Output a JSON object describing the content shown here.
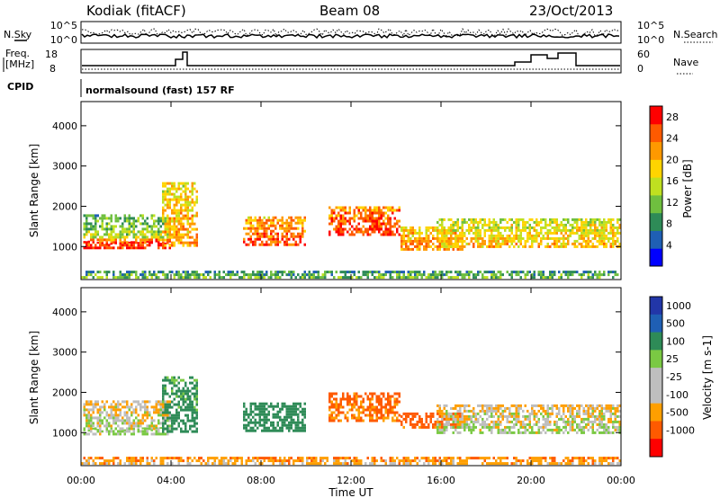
{
  "header": {
    "station": "Kodiak (fitACF)",
    "beam": "Beam 08",
    "date": "23/Oct/2013"
  },
  "top_panels": {
    "nsky_label": "N.Sky",
    "nsearch_label": "N.Search",
    "freq_label_1": "Freq.",
    "freq_label_2": "[MHz]",
    "nave_label": "Nave",
    "cpid_label": "CPID",
    "cpid_value": "normalsound (fast) 157 RF",
    "noise_left_ticks": [
      "10^5",
      "10^0"
    ],
    "noise_right_ticks": [
      "10^5",
      "10^0"
    ],
    "freq_ticks": [
      "18",
      "8"
    ],
    "nave_ticks": [
      "60",
      "0"
    ]
  },
  "colors": {
    "power": [
      "#0000ff",
      "#1f5fb4",
      "#2e8b57",
      "#6fbf3f",
      "#bfe020",
      "#ffd400",
      "#ff9900",
      "#ff5a00",
      "#ff0000"
    ],
    "velocity": [
      "#ff0000",
      "#ff5a00",
      "#ff9f00",
      "#bebebe",
      "#bebebe",
      "#7ac943",
      "#2e8b57",
      "#1f5fb4",
      "#2236a8"
    ]
  },
  "chart_data": [
    {
      "type": "heatmap",
      "title": "",
      "xlabel": "Time UT",
      "ylabel": "Slant Range [km]",
      "x_ticks": [
        "00:00",
        "04:00",
        "08:00",
        "12:00",
        "16:00",
        "20:00",
        "00:00"
      ],
      "y_ticks": [
        "1000",
        "2000",
        "3000",
        "4000"
      ],
      "xlim_hours": [
        0,
        24
      ],
      "ylim_km": [
        180,
        4600
      ],
      "colorbar": {
        "label": "Power [dB]",
        "ticks": [
          "4",
          "8",
          "12",
          "16",
          "20",
          "24",
          "28"
        ],
        "range": [
          0,
          30
        ]
      },
      "echo_regions": [
        {
          "t_start": 0.1,
          "t_end": 4.0,
          "range_km": [
            950,
            1200
          ],
          "value": 27
        },
        {
          "t_start": 0.1,
          "t_end": 4.0,
          "range_km": [
            1200,
            1800
          ],
          "value": 12
        },
        {
          "t_start": 3.6,
          "t_end": 5.2,
          "range_km": [
            1000,
            2600
          ],
          "value": 20
        },
        {
          "t_start": 7.2,
          "t_end": 10.0,
          "range_km": [
            1050,
            1750
          ],
          "value": 24
        },
        {
          "t_start": 11.0,
          "t_end": 14.2,
          "range_km": [
            1300,
            2000
          ],
          "value": 26
        },
        {
          "t_start": 14.2,
          "t_end": 17.0,
          "range_km": [
            900,
            1500
          ],
          "value": 22
        },
        {
          "t_start": 15.8,
          "t_end": 24.0,
          "range_km": [
            1000,
            1700
          ],
          "value": 18
        },
        {
          "t_start": 0.0,
          "t_end": 24.0,
          "range_km": [
            200,
            400
          ],
          "value": 10
        }
      ]
    },
    {
      "type": "heatmap",
      "title": "",
      "xlabel": "Time UT",
      "ylabel": "Slant Range [km]",
      "x_ticks": [
        "00:00",
        "04:00",
        "08:00",
        "12:00",
        "16:00",
        "20:00",
        "00:00"
      ],
      "y_ticks": [
        "1000",
        "2000",
        "3000",
        "4000"
      ],
      "xlim_hours": [
        0,
        24
      ],
      "ylim_km": [
        180,
        4600
      ],
      "colorbar": {
        "label": "Velocity [m s-1]",
        "ticks": [
          "1000",
          "500",
          "100",
          "25",
          "-25",
          "-100",
          "-500",
          "-1000"
        ],
        "range": [
          -1000,
          1000
        ]
      },
      "echo_regions": [
        {
          "t_start": 0.1,
          "t_end": 4.0,
          "range_km": [
            950,
            1800
          ],
          "value": 0
        },
        {
          "t_start": 3.6,
          "t_end": 5.2,
          "range_km": [
            1000,
            2400
          ],
          "value": 150
        },
        {
          "t_start": 7.2,
          "t_end": 10.0,
          "range_km": [
            1050,
            1750
          ],
          "value": 200
        },
        {
          "t_start": 11.0,
          "t_end": 14.2,
          "range_km": [
            1300,
            2000
          ],
          "value": -120
        },
        {
          "t_start": 14.2,
          "t_end": 17.0,
          "range_km": [
            1100,
            1500
          ],
          "value": -150
        },
        {
          "t_start": 15.8,
          "t_end": 24.0,
          "range_km": [
            1000,
            1700
          ],
          "value": 0
        },
        {
          "t_start": 0.0,
          "t_end": 24.0,
          "range_km": [
            200,
            400
          ],
          "value": -60
        }
      ]
    }
  ]
}
